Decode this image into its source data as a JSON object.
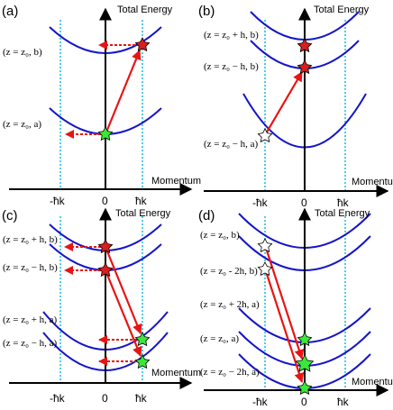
{
  "colors": {
    "parabola": "#1515c8",
    "dotted_line": "#22bfe8",
    "arrow": "#e81414",
    "star_green": "#3ae83a",
    "star_red": "#d81e1e",
    "star_white": "#ffffff"
  },
  "panels": {
    "a": {
      "tag": "(a)",
      "y_axis_label": "Total Energy",
      "x_axis_label": "Momentum",
      "ticks": [
        "-ħk",
        "0",
        "ħk"
      ],
      "state_labels": [
        "(z = z₀, b)",
        "(z = z₀, a)"
      ]
    },
    "b": {
      "tag": "(b)",
      "y_axis_label": "Total Energy",
      "x_axis_label": "Momentum",
      "ticks": [
        "-ħk",
        "0",
        "ħk"
      ],
      "state_labels": [
        "(z = z₀ + h, b)",
        "(z = z₀ − h, b)",
        "(z = z₀ − h, a)"
      ]
    },
    "c": {
      "tag": "(c)",
      "y_axis_label": "Total Energy",
      "x_axis_label": "Momentum",
      "ticks": [
        "-ħk",
        "0",
        "ħk"
      ],
      "state_labels": [
        "(z = z₀ + h, b)",
        "(z = z₀ − h, b)",
        "(z = z₀ + h, a)",
        "(z = z₀ − h, a)"
      ]
    },
    "d": {
      "tag": "(d)",
      "y_axis_label": "Total Energy",
      "x_axis_label": "Momentum",
      "ticks": [
        "-ħk",
        "0",
        "ħk"
      ],
      "state_labels": [
        "(z = z₀, b)",
        "(z = z₀ - 2h, b)",
        "(z = z₀ + 2h, a)",
        "(z = z₀, a)",
        "(z = z₀ − 2h, a)"
      ]
    }
  }
}
